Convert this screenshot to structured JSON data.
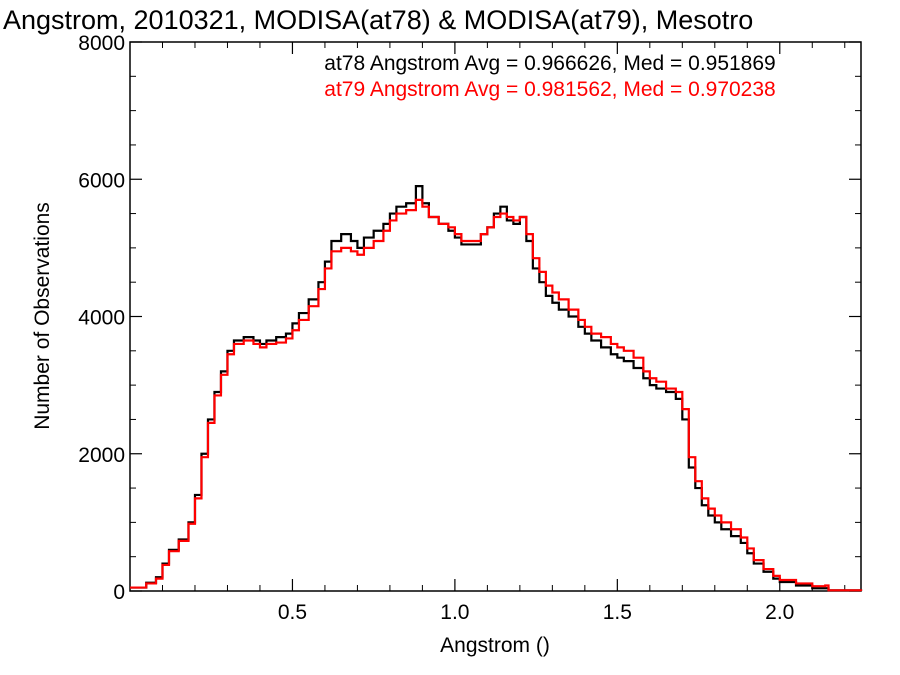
{
  "chart_data": {
    "type": "line",
    "title": "Angstrom, 2010321, MODISA(at78) & MODISA(at79), Mesotro",
    "xlabel": "Angstrom ()",
    "ylabel": "Number of Observations",
    "xlim": [
      0.0,
      2.25
    ],
    "ylim": [
      0,
      8000
    ],
    "x_ticks": [
      0.5,
      1.0,
      1.5,
      2.0
    ],
    "x_tick_labels": [
      "0.5",
      "1.0",
      "1.5",
      "2.0"
    ],
    "y_ticks": [
      0,
      2000,
      4000,
      6000,
      8000
    ],
    "y_tick_labels": [
      "0",
      "2000",
      "4000",
      "6000",
      "8000"
    ],
    "grid": false,
    "legend": "top-right",
    "annotations": [
      {
        "text": "at78 Angstrom Avg = 0.966626, Med = 0.951869",
        "color": "#000000"
      },
      {
        "text": "at79 Angstrom Avg = 0.981562, Med = 0.970238",
        "color": "#ff0000"
      }
    ],
    "series": [
      {
        "color": "#000000",
        "points": [
          [
            0.0,
            50
          ],
          [
            0.05,
            120
          ],
          [
            0.08,
            200
          ],
          [
            0.1,
            400
          ],
          [
            0.12,
            600
          ],
          [
            0.15,
            750
          ],
          [
            0.18,
            1000
          ],
          [
            0.2,
            1400
          ],
          [
            0.22,
            2000
          ],
          [
            0.24,
            2500
          ],
          [
            0.26,
            2900
          ],
          [
            0.28,
            3200
          ],
          [
            0.3,
            3500
          ],
          [
            0.32,
            3650
          ],
          [
            0.35,
            3700
          ],
          [
            0.38,
            3650
          ],
          [
            0.4,
            3600
          ],
          [
            0.42,
            3650
          ],
          [
            0.45,
            3700
          ],
          [
            0.48,
            3750
          ],
          [
            0.5,
            3900
          ],
          [
            0.52,
            4050
          ],
          [
            0.55,
            4250
          ],
          [
            0.58,
            4500
          ],
          [
            0.6,
            4800
          ],
          [
            0.62,
            5100
          ],
          [
            0.65,
            5200
          ],
          [
            0.68,
            5100
          ],
          [
            0.7,
            5000
          ],
          [
            0.72,
            5150
          ],
          [
            0.75,
            5250
          ],
          [
            0.78,
            5350
          ],
          [
            0.8,
            5500
          ],
          [
            0.82,
            5600
          ],
          [
            0.85,
            5650
          ],
          [
            0.88,
            5900
          ],
          [
            0.9,
            5650
          ],
          [
            0.92,
            5450
          ],
          [
            0.95,
            5350
          ],
          [
            0.98,
            5250
          ],
          [
            1.0,
            5150
          ],
          [
            1.02,
            5050
          ],
          [
            1.05,
            5050
          ],
          [
            1.08,
            5200
          ],
          [
            1.1,
            5300
          ],
          [
            1.12,
            5500
          ],
          [
            1.14,
            5600
          ],
          [
            1.16,
            5400
          ],
          [
            1.18,
            5350
          ],
          [
            1.2,
            5450
          ],
          [
            1.22,
            5100
          ],
          [
            1.24,
            4700
          ],
          [
            1.26,
            4500
          ],
          [
            1.28,
            4300
          ],
          [
            1.3,
            4200
          ],
          [
            1.32,
            4100
          ],
          [
            1.35,
            4000
          ],
          [
            1.38,
            3850
          ],
          [
            1.4,
            3750
          ],
          [
            1.42,
            3650
          ],
          [
            1.45,
            3550
          ],
          [
            1.48,
            3450
          ],
          [
            1.5,
            3400
          ],
          [
            1.52,
            3350
          ],
          [
            1.55,
            3250
          ],
          [
            1.58,
            3100
          ],
          [
            1.6,
            3000
          ],
          [
            1.62,
            2950
          ],
          [
            1.65,
            2900
          ],
          [
            1.68,
            2800
          ],
          [
            1.7,
            2500
          ],
          [
            1.72,
            1800
          ],
          [
            1.74,
            1500
          ],
          [
            1.76,
            1250
          ],
          [
            1.78,
            1100
          ],
          [
            1.8,
            1000
          ],
          [
            1.82,
            900
          ],
          [
            1.85,
            800
          ],
          [
            1.88,
            700
          ],
          [
            1.9,
            550
          ],
          [
            1.92,
            400
          ],
          [
            1.95,
            280
          ],
          [
            1.98,
            180
          ],
          [
            2.0,
            130
          ],
          [
            2.05,
            80
          ],
          [
            2.1,
            40
          ],
          [
            2.15,
            10
          ],
          [
            2.25,
            0
          ]
        ]
      },
      {
        "color": "#ff0000",
        "points": [
          [
            0.0,
            50
          ],
          [
            0.05,
            110
          ],
          [
            0.08,
            180
          ],
          [
            0.1,
            380
          ],
          [
            0.12,
            580
          ],
          [
            0.15,
            730
          ],
          [
            0.18,
            980
          ],
          [
            0.2,
            1350
          ],
          [
            0.22,
            1950
          ],
          [
            0.24,
            2450
          ],
          [
            0.26,
            2850
          ],
          [
            0.28,
            3150
          ],
          [
            0.3,
            3450
          ],
          [
            0.32,
            3600
          ],
          [
            0.35,
            3650
          ],
          [
            0.38,
            3600
          ],
          [
            0.4,
            3550
          ],
          [
            0.42,
            3600
          ],
          [
            0.45,
            3620
          ],
          [
            0.48,
            3680
          ],
          [
            0.5,
            3800
          ],
          [
            0.52,
            3950
          ],
          [
            0.55,
            4150
          ],
          [
            0.58,
            4400
          ],
          [
            0.6,
            4700
          ],
          [
            0.62,
            4950
          ],
          [
            0.65,
            5000
          ],
          [
            0.68,
            4950
          ],
          [
            0.7,
            4900
          ],
          [
            0.72,
            5000
          ],
          [
            0.75,
            5100
          ],
          [
            0.78,
            5250
          ],
          [
            0.8,
            5400
          ],
          [
            0.82,
            5500
          ],
          [
            0.85,
            5550
          ],
          [
            0.88,
            5700
          ],
          [
            0.9,
            5600
          ],
          [
            0.92,
            5450
          ],
          [
            0.95,
            5350
          ],
          [
            0.98,
            5300
          ],
          [
            1.0,
            5200
          ],
          [
            1.02,
            5100
          ],
          [
            1.05,
            5100
          ],
          [
            1.08,
            5200
          ],
          [
            1.1,
            5300
          ],
          [
            1.12,
            5450
          ],
          [
            1.14,
            5500
          ],
          [
            1.16,
            5450
          ],
          [
            1.18,
            5400
          ],
          [
            1.2,
            5450
          ],
          [
            1.22,
            5200
          ],
          [
            1.24,
            4850
          ],
          [
            1.26,
            4650
          ],
          [
            1.28,
            4450
          ],
          [
            1.3,
            4350
          ],
          [
            1.32,
            4250
          ],
          [
            1.35,
            4100
          ],
          [
            1.38,
            3950
          ],
          [
            1.4,
            3850
          ],
          [
            1.42,
            3750
          ],
          [
            1.45,
            3700
          ],
          [
            1.48,
            3600
          ],
          [
            1.5,
            3550
          ],
          [
            1.52,
            3500
          ],
          [
            1.55,
            3400
          ],
          [
            1.58,
            3200
          ],
          [
            1.6,
            3100
          ],
          [
            1.62,
            3050
          ],
          [
            1.65,
            2950
          ],
          [
            1.68,
            2900
          ],
          [
            1.7,
            2650
          ],
          [
            1.72,
            1950
          ],
          [
            1.74,
            1600
          ],
          [
            1.76,
            1350
          ],
          [
            1.78,
            1200
          ],
          [
            1.8,
            1100
          ],
          [
            1.82,
            1000
          ],
          [
            1.85,
            900
          ],
          [
            1.88,
            780
          ],
          [
            1.9,
            620
          ],
          [
            1.92,
            450
          ],
          [
            1.95,
            320
          ],
          [
            1.98,
            220
          ],
          [
            2.0,
            160
          ],
          [
            2.05,
            110
          ],
          [
            2.1,
            70
          ],
          [
            2.14,
            80
          ],
          [
            2.15,
            10
          ],
          [
            2.25,
            0
          ]
        ]
      }
    ]
  }
}
